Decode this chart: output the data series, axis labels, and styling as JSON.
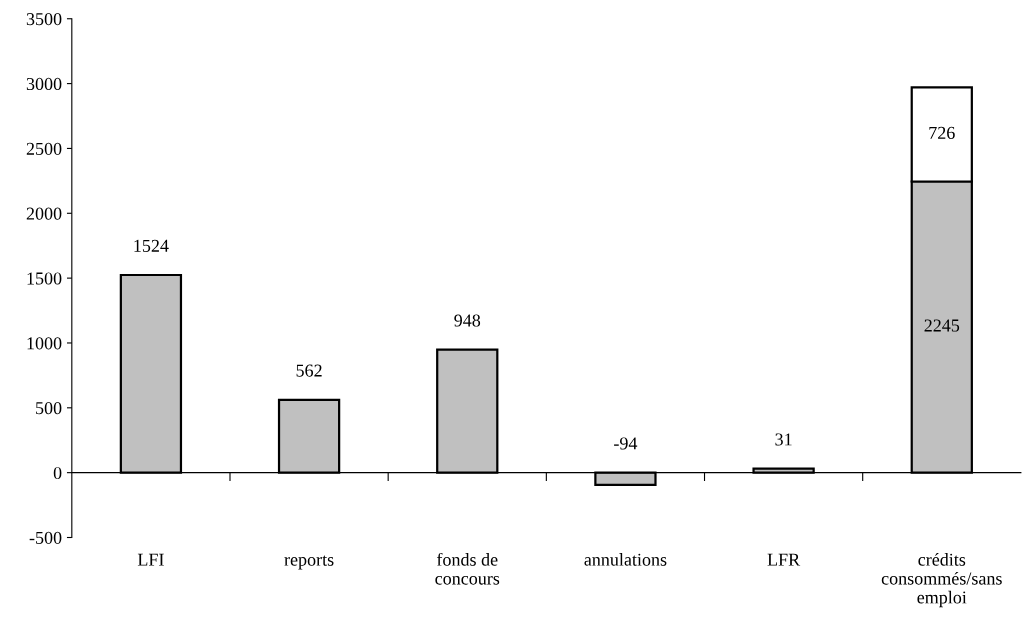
{
  "chart_data": {
    "type": "bar",
    "stacked": true,
    "categories": [
      "LFI",
      "reports",
      "fonds de concours",
      "annulations",
      "LFR",
      "crédits consommés/sans emploi"
    ],
    "series": [
      {
        "color": "#c0c0c0",
        "values": [
          1524,
          562,
          948,
          -94,
          31,
          2245
        ]
      },
      {
        "color": "#ffffff",
        "values": [
          null,
          null,
          null,
          null,
          null,
          726
        ]
      }
    ],
    "ylim": [
      -500,
      3500
    ],
    "yticks": [
      -500,
      0,
      500,
      1000,
      1500,
      2000,
      2500,
      3000,
      3500
    ],
    "data_labels": true
  }
}
